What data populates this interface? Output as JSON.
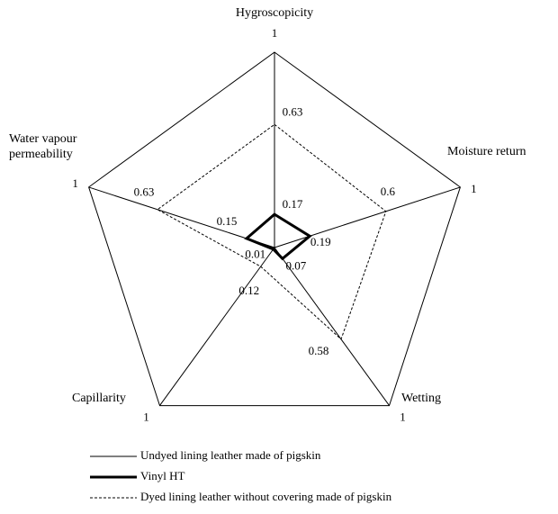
{
  "chart_data": {
    "type": "radar",
    "categories": [
      "Hygroscopicity",
      "Moisture return",
      "Wetting",
      "Capillarity",
      "Water vapour permeability"
    ],
    "rlim": [
      0,
      1
    ],
    "series": [
      {
        "name": "Undyed lining leather made of pigskin",
        "color": "#000000",
        "line_width": 1,
        "line_style": "solid",
        "values": [
          1,
          1,
          1,
          1,
          1
        ]
      },
      {
        "name": "Vinyl HT",
        "color": "#000000",
        "line_width": 3,
        "line_style": "solid",
        "values": [
          0.17,
          0.19,
          0.07,
          0.01,
          0.15
        ]
      },
      {
        "name": "Dyed lining leather without covering made of pigskin",
        "color": "#000000",
        "line_width": 1,
        "line_style": "dashed",
        "values": [
          0.63,
          0.6,
          0.58,
          0.12,
          0.63
        ]
      }
    ]
  }
}
